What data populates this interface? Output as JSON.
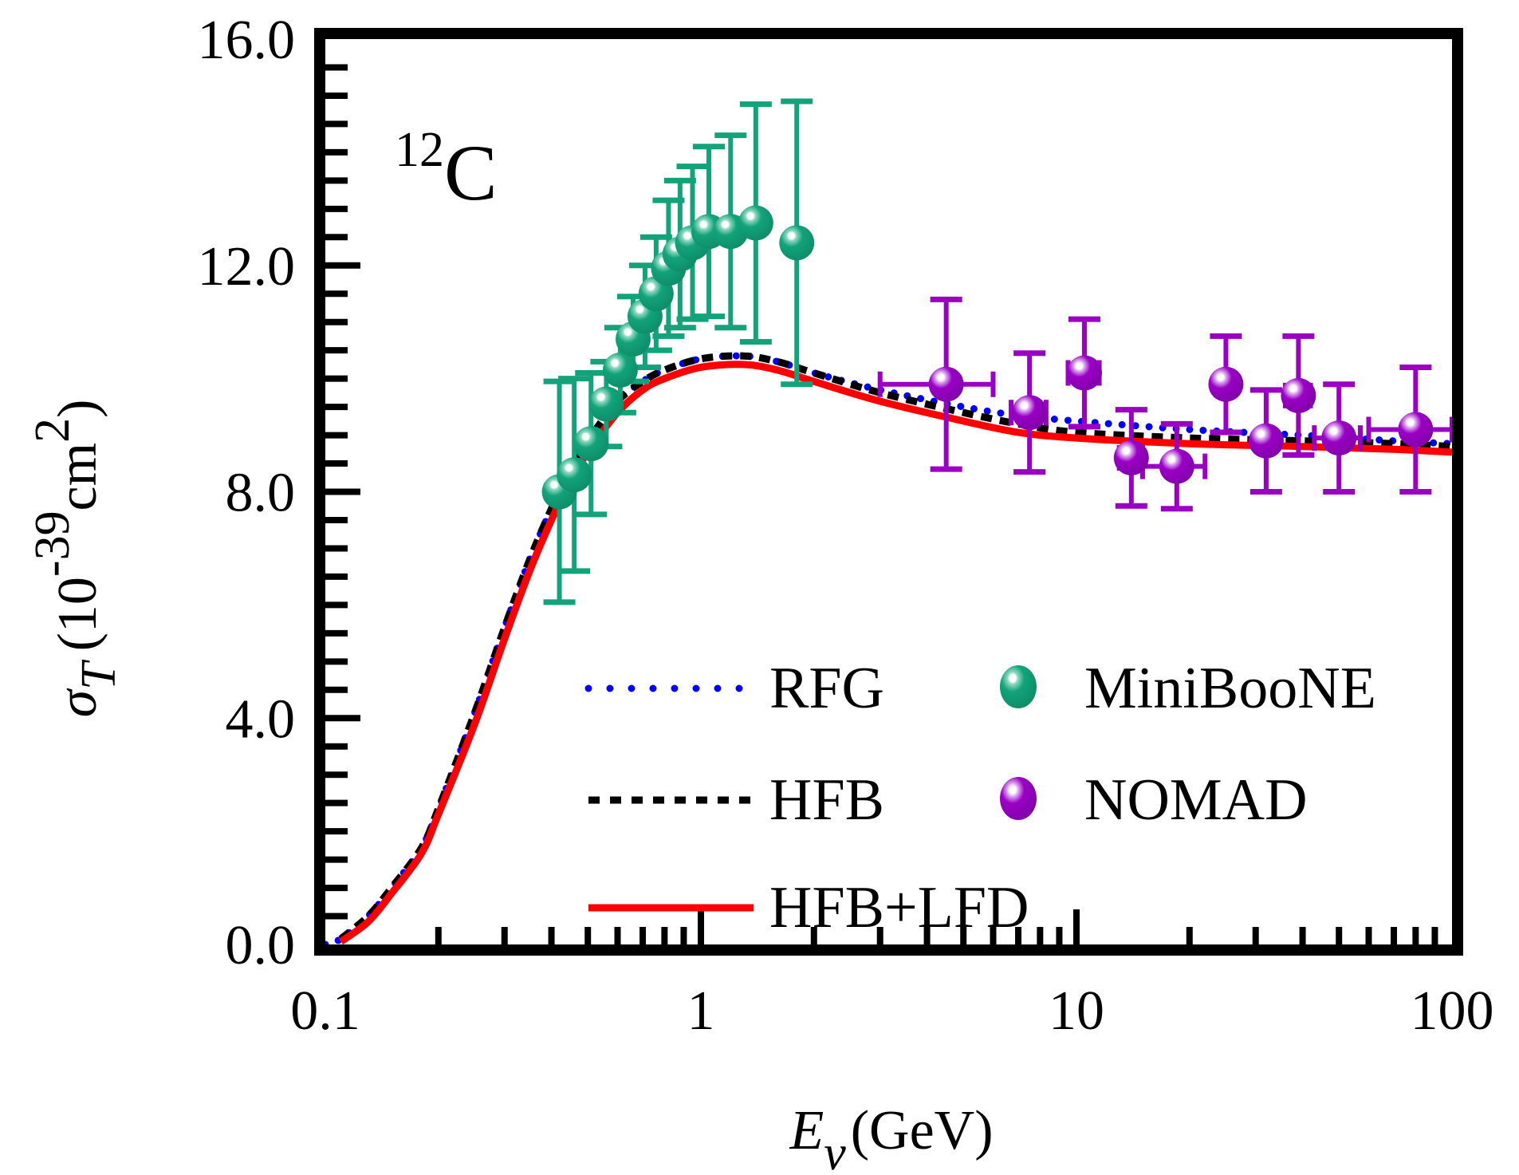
{
  "chart_data": {
    "type": "line",
    "title": "",
    "annotation": {
      "nucleus_mass": "12",
      "nucleus_symbol": "C"
    },
    "xlabel": {
      "symbol": "E",
      "subscript": "ν",
      "unit": "(GeV)"
    },
    "ylabel": {
      "symbol": "σ",
      "subscript": "T",
      "unit_prefix": "(10",
      "unit_exp": "-39",
      "unit_mid": "cm",
      "unit_exp2": "2",
      "unit_suffix": ")"
    },
    "xscale": "log",
    "xlim": [
      0.1,
      100
    ],
    "ylim": [
      0,
      16
    ],
    "xticks": [
      {
        "v": 0.1,
        "label": "0.1"
      },
      {
        "v": 1,
        "label": "1"
      },
      {
        "v": 10,
        "label": "10"
      },
      {
        "v": 100,
        "label": "100"
      }
    ],
    "yticks": [
      {
        "v": 0,
        "label": "0.0"
      },
      {
        "v": 4,
        "label": "4.0"
      },
      {
        "v": 8,
        "label": "8.0"
      },
      {
        "v": 12,
        "label": "12.0"
      },
      {
        "v": 16,
        "label": "16.0"
      }
    ],
    "grid": false,
    "legend_position": "bottom-right",
    "series": [
      {
        "name": "RFG",
        "style": "dotted",
        "color": "#0000ff",
        "x": [
          0.1,
          0.11,
          0.13,
          0.15,
          0.18,
          0.2,
          0.25,
          0.3,
          0.35,
          0.4,
          0.45,
          0.5,
          0.6,
          0.7,
          0.8,
          1.0,
          1.3,
          1.6,
          2.0,
          3.0,
          5.0,
          7.0,
          10.0,
          20.0,
          40.0,
          70.0,
          100.0
        ],
        "y": [
          0.0,
          0.1,
          0.5,
          1.0,
          1.7,
          2.4,
          4.1,
          5.6,
          6.8,
          7.7,
          8.4,
          8.9,
          9.6,
          9.95,
          10.15,
          10.35,
          10.4,
          10.3,
          10.1,
          9.8,
          9.5,
          9.35,
          9.25,
          9.1,
          9.0,
          8.9,
          8.85
        ]
      },
      {
        "name": "HFB",
        "style": "dashed",
        "color": "#000000",
        "x": [
          0.11,
          0.13,
          0.15,
          0.18,
          0.2,
          0.25,
          0.3,
          0.35,
          0.4,
          0.45,
          0.5,
          0.6,
          0.7,
          0.8,
          1.0,
          1.3,
          1.6,
          2.0,
          3.0,
          5.0,
          7.0,
          10.0,
          20.0,
          40.0,
          70.0,
          100.0
        ],
        "y": [
          0.1,
          0.5,
          1.0,
          1.7,
          2.4,
          4.1,
          5.6,
          6.8,
          7.7,
          8.4,
          8.9,
          9.6,
          9.95,
          10.15,
          10.35,
          10.4,
          10.3,
          10.1,
          9.75,
          9.4,
          9.2,
          9.05,
          8.95,
          8.9,
          8.85,
          8.8
        ]
      },
      {
        "name": "HFB+LFD",
        "style": "solid",
        "color": "#ff0000",
        "x": [
          0.11,
          0.13,
          0.15,
          0.18,
          0.2,
          0.25,
          0.3,
          0.35,
          0.4,
          0.45,
          0.5,
          0.6,
          0.7,
          0.8,
          1.0,
          1.3,
          1.6,
          2.0,
          3.0,
          5.0,
          7.0,
          10.0,
          20.0,
          40.0,
          70.0,
          100.0
        ],
        "y": [
          0.05,
          0.4,
          0.9,
          1.6,
          2.3,
          3.9,
          5.4,
          6.6,
          7.5,
          8.2,
          8.7,
          9.4,
          9.8,
          10.0,
          10.2,
          10.25,
          10.15,
          9.95,
          9.6,
          9.25,
          9.05,
          8.95,
          8.85,
          8.8,
          8.75,
          8.7
        ]
      }
    ],
    "scatter": [
      {
        "name": "MiniBooNE",
        "color": "#12a37a",
        "points": [
          {
            "x": 0.42,
            "y": 8.0,
            "yerr": 1.95,
            "xerr": 0
          },
          {
            "x": 0.46,
            "y": 8.3,
            "yerr": 1.7,
            "xerr": 0
          },
          {
            "x": 0.51,
            "y": 8.85,
            "yerr": 1.25,
            "xerr": 0
          },
          {
            "x": 0.56,
            "y": 9.55,
            "yerr": 0.75,
            "xerr": 0
          },
          {
            "x": 0.61,
            "y": 10.15,
            "yerr": 0.75,
            "xerr": 0
          },
          {
            "x": 0.66,
            "y": 10.7,
            "yerr": 0.75,
            "xerr": 0
          },
          {
            "x": 0.71,
            "y": 11.1,
            "yerr": 0.9,
            "xerr": 0
          },
          {
            "x": 0.76,
            "y": 11.5,
            "yerr": 1.0,
            "xerr": 0
          },
          {
            "x": 0.82,
            "y": 11.95,
            "yerr": 1.2,
            "xerr": 0
          },
          {
            "x": 0.88,
            "y": 12.2,
            "yerr": 1.3,
            "xerr": 0
          },
          {
            "x": 0.95,
            "y": 12.4,
            "yerr": 1.35,
            "xerr": 0
          },
          {
            "x": 1.05,
            "y": 12.6,
            "yerr": 1.5,
            "xerr": 0
          },
          {
            "x": 1.2,
            "y": 12.6,
            "yerr": 1.7,
            "xerr": 0
          },
          {
            "x": 1.4,
            "y": 12.75,
            "yerr": 2.1,
            "xerr": 0
          },
          {
            "x": 1.8,
            "y": 12.4,
            "yerr": 2.5,
            "xerr": 0.1
          }
        ]
      },
      {
        "name": "NOMAD",
        "color": "#9a00c4",
        "points": [
          {
            "x": 4.5,
            "y": 9.9,
            "yerr": 1.5,
            "xerr": 1.5
          },
          {
            "x": 7.5,
            "y": 9.4,
            "yerr": 1.05,
            "xerr": 0.8
          },
          {
            "x": 10.5,
            "y": 10.1,
            "yerr": 0.95,
            "xerr": 1.0
          },
          {
            "x": 14.0,
            "y": 8.6,
            "yerr": 0.85,
            "xerr": 1.0
          },
          {
            "x": 18.5,
            "y": 8.45,
            "yerr": 0.75,
            "xerr": 3.5
          },
          {
            "x": 25.0,
            "y": 9.9,
            "yerr": 0.85,
            "xerr": 1.5
          },
          {
            "x": 32.0,
            "y": 8.9,
            "yerr": 0.9,
            "xerr": 0
          },
          {
            "x": 39.0,
            "y": 9.7,
            "yerr": 1.05,
            "xerr": 3.0
          },
          {
            "x": 50.0,
            "y": 8.95,
            "yerr": 0.95,
            "xerr": 7.0
          },
          {
            "x": 80.0,
            "y": 9.1,
            "yerr": 1.1,
            "xerr": 20.0
          }
        ]
      }
    ]
  }
}
